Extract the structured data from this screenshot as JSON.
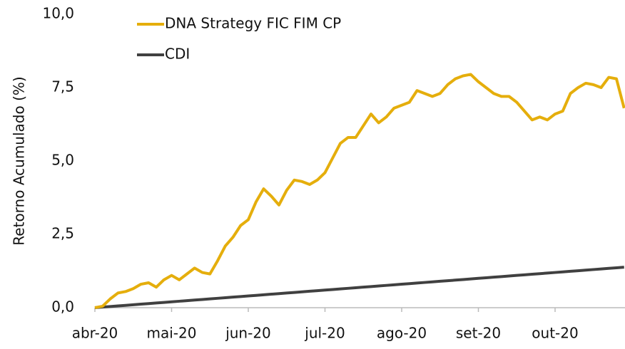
{
  "chart_data": {
    "type": "line",
    "ylabel": "Retorno Acumulado (%)",
    "categories": [
      "abr-20",
      null,
      null,
      null,
      null,
      null,
      null,
      null,
      null,
      null,
      "mai-20",
      null,
      null,
      null,
      null,
      null,
      null,
      null,
      null,
      null,
      "jun-20",
      null,
      null,
      null,
      null,
      null,
      null,
      null,
      null,
      null,
      "jul-20",
      null,
      null,
      null,
      null,
      null,
      null,
      null,
      null,
      null,
      "ago-20",
      null,
      null,
      null,
      null,
      null,
      null,
      null,
      null,
      null,
      "set-20",
      null,
      null,
      null,
      null,
      null,
      null,
      null,
      null,
      null,
      "out-20",
      null,
      null,
      null,
      null,
      null,
      null,
      null,
      null,
      null
    ],
    "series": [
      {
        "name": "DNA Strategy FIC FIM CP",
        "color": "#e5ae0c",
        "values": [
          0,
          0.05,
          0.3,
          0.5,
          0.55,
          0.65,
          0.8,
          0.85,
          0.7,
          0.95,
          1.1,
          0.95,
          1.15,
          1.35,
          1.2,
          1.15,
          1.6,
          2.1,
          2.4,
          2.8,
          3.0,
          3.6,
          4.05,
          3.8,
          3.5,
          4.0,
          4.35,
          4.3,
          4.2,
          4.35,
          4.6,
          5.1,
          5.6,
          5.8,
          5.8,
          6.2,
          6.6,
          6.3,
          6.5,
          6.8,
          6.9,
          7.0,
          7.4,
          7.3,
          7.2,
          7.3,
          7.6,
          7.8,
          7.9,
          7.95,
          7.7,
          7.5,
          7.3,
          7.2,
          7.2,
          7.0,
          6.7,
          6.4,
          6.5,
          6.4,
          6.6,
          6.7,
          7.3,
          7.5,
          7.65,
          7.6,
          7.5,
          7.85,
          7.8,
          6.8
        ]
      },
      {
        "name": "CDI",
        "color": "#404040",
        "values": [
          0,
          0.02,
          0.04,
          0.06,
          0.08,
          0.1,
          0.12,
          0.14,
          0.16,
          0.18,
          0.2,
          0.22,
          0.24,
          0.26,
          0.28,
          0.3,
          0.32,
          0.34,
          0.36,
          0.38,
          0.4,
          0.42,
          0.44,
          0.46,
          0.48,
          0.5,
          0.52,
          0.54,
          0.56,
          0.58,
          0.6,
          0.62,
          0.64,
          0.66,
          0.68,
          0.7,
          0.72,
          0.74,
          0.76,
          0.78,
          0.8,
          0.82,
          0.84,
          0.86,
          0.88,
          0.9,
          0.92,
          0.94,
          0.96,
          0.98,
          1.0,
          1.02,
          1.04,
          1.06,
          1.08,
          1.1,
          1.12,
          1.14,
          1.16,
          1.18,
          1.2,
          1.22,
          1.24,
          1.26,
          1.28,
          1.3,
          1.32,
          1.34,
          1.36,
          1.38
        ]
      }
    ],
    "ylim": [
      0,
      10
    ],
    "yticks": [
      {
        "value": 0,
        "label": "0,0"
      },
      {
        "value": 2.5,
        "label": "2,5"
      },
      {
        "value": 5,
        "label": "5,0"
      },
      {
        "value": 7.5,
        "label": "7,5"
      },
      {
        "value": 10,
        "label": "10,0"
      }
    ],
    "grid": false,
    "legend": "upper left"
  }
}
